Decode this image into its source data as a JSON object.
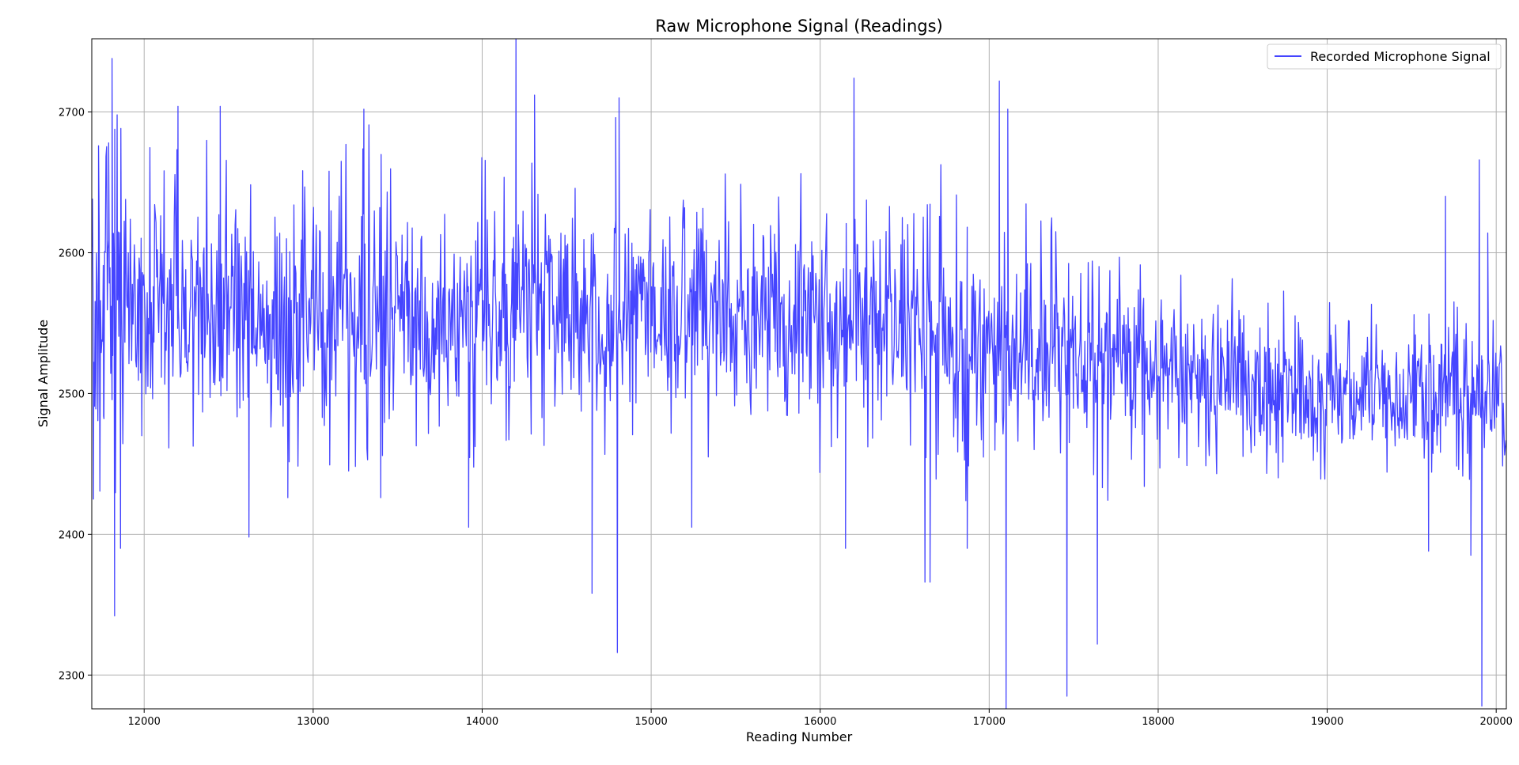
{
  "chart_data": {
    "type": "line",
    "title": "Raw Microphone Signal (Readings)",
    "xlabel": "Reading Number",
    "ylabel": "Signal Amplitude",
    "xlim": [
      11690,
      20060
    ],
    "ylim": [
      2276,
      2752
    ],
    "xticks": [
      12000,
      13000,
      14000,
      15000,
      16000,
      17000,
      18000,
      19000,
      20000
    ],
    "yticks": [
      2300,
      2400,
      2500,
      2600,
      2700
    ],
    "grid": true,
    "legend_position": "top-right",
    "series": [
      {
        "name": "Recorded Microphone Signal",
        "color": "#4545ff",
        "envelope_x": [
          11690,
          11800,
          12000,
          12500,
          13000,
          13500,
          14000,
          14500,
          15000,
          15500,
          16000,
          16500,
          17000,
          17500,
          18000,
          18500,
          19000,
          19500,
          20060
        ],
        "envelope_mid": [
          2555,
          2560,
          2565,
          2565,
          2562,
          2560,
          2560,
          2558,
          2557,
          2555,
          2552,
          2545,
          2535,
          2525,
          2515,
          2508,
          2503,
          2500,
          2498
        ],
        "envelope_spread": [
          70,
          75,
          65,
          65,
          62,
          60,
          60,
          58,
          57,
          56,
          58,
          60,
          60,
          55,
          45,
          38,
          35,
          35,
          38
        ],
        "peaks": [
          {
            "x": 11700,
            "y": 2425
          },
          {
            "x": 11730,
            "y": 2676
          },
          {
            "x": 11760,
            "y": 2484
          },
          {
            "x": 11790,
            "y": 2678
          },
          {
            "x": 11810,
            "y": 2738
          },
          {
            "x": 11825,
            "y": 2342
          },
          {
            "x": 11840,
            "y": 2698
          },
          {
            "x": 11860,
            "y": 2390
          },
          {
            "x": 12200,
            "y": 2704
          },
          {
            "x": 12450,
            "y": 2704
          },
          {
            "x": 12620,
            "y": 2398
          },
          {
            "x": 12850,
            "y": 2426
          },
          {
            "x": 13300,
            "y": 2702
          },
          {
            "x": 13400,
            "y": 2426
          },
          {
            "x": 13920,
            "y": 2405
          },
          {
            "x": 14200,
            "y": 2752
          },
          {
            "x": 14310,
            "y": 2712
          },
          {
            "x": 14650,
            "y": 2358
          },
          {
            "x": 14790,
            "y": 2696
          },
          {
            "x": 14800,
            "y": 2316
          },
          {
            "x": 14810,
            "y": 2710
          },
          {
            "x": 15240,
            "y": 2405
          },
          {
            "x": 16150,
            "y": 2390
          },
          {
            "x": 16200,
            "y": 2724
          },
          {
            "x": 16620,
            "y": 2366
          },
          {
            "x": 16650,
            "y": 2366
          },
          {
            "x": 16870,
            "y": 2390
          },
          {
            "x": 17060,
            "y": 2722
          },
          {
            "x": 17100,
            "y": 2276
          },
          {
            "x": 17110,
            "y": 2702
          },
          {
            "x": 17460,
            "y": 2285
          },
          {
            "x": 17640,
            "y": 2322
          },
          {
            "x": 19600,
            "y": 2388
          },
          {
            "x": 19700,
            "y": 2640
          },
          {
            "x": 19850,
            "y": 2385
          },
          {
            "x": 19900,
            "y": 2666
          },
          {
            "x": 19915,
            "y": 2278
          },
          {
            "x": 19950,
            "y": 2614
          }
        ]
      }
    ]
  }
}
